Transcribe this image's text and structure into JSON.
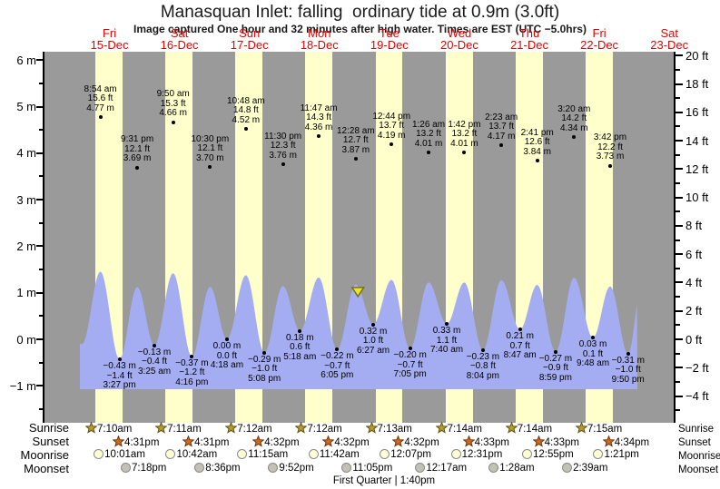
{
  "header": {
    "title": "Manasquan Inlet: falling  ordinary tide at 0.9m (3.0ft)",
    "subtitle": "Image captured One hour and 32 minutes after high water. Times are EST (UTC −5.0hrs)"
  },
  "days": [
    {
      "name": "Fri",
      "date": "15-Dec"
    },
    {
      "name": "Sat",
      "date": "16-Dec"
    },
    {
      "name": "Sun",
      "date": "17-Dec"
    },
    {
      "name": "Mon",
      "date": "18-Dec"
    },
    {
      "name": "Tue",
      "date": "19-Dec"
    },
    {
      "name": "Wed",
      "date": "20-Dec"
    },
    {
      "name": "Thu",
      "date": "21-Dec"
    },
    {
      "name": "Fri",
      "date": "22-Dec"
    },
    {
      "name": "Sat",
      "date": "23-Dec"
    }
  ],
  "axis": {
    "left_ticks": [
      {
        "v": 6,
        "label": "6 m"
      },
      {
        "v": 5,
        "label": "5 m"
      },
      {
        "v": 4,
        "label": "4 m"
      },
      {
        "v": 3,
        "label": "3 m"
      },
      {
        "v": 2,
        "label": "2 m"
      },
      {
        "v": 1,
        "label": "1 m"
      },
      {
        "v": 0,
        "label": "0 m"
      },
      {
        "v": -1,
        "label": "−1 m"
      }
    ],
    "right_ticks": [
      {
        "v": 20,
        "label": "20 ft"
      },
      {
        "v": 18,
        "label": "18 ft"
      },
      {
        "v": 16,
        "label": "16 ft"
      },
      {
        "v": 14,
        "label": "14 ft"
      },
      {
        "v": 12,
        "label": "12 ft"
      },
      {
        "v": 10,
        "label": "10 ft"
      },
      {
        "v": 8,
        "label": "8 ft"
      },
      {
        "v": 6,
        "label": "6 ft"
      },
      {
        "v": 4,
        "label": "4 ft"
      },
      {
        "v": 2,
        "label": "2 ft"
      },
      {
        "v": 0,
        "label": "0 ft"
      },
      {
        "v": -2,
        "label": "−2 ft"
      },
      {
        "v": -4,
        "label": "−4 ft"
      }
    ]
  },
  "chart_data": {
    "type": "area",
    "title": "Manasquan Inlet: falling  ordinary tide at 0.9m (3.0ft)",
    "x_axis": "days 15-Dec through 23-Dec",
    "y_axis_left": "height (m), range −1.8 to 6.2",
    "y_axis_right": "height (ft), range −5 to 20",
    "high_tides": [
      {
        "day": 0,
        "time": "8:54 am",
        "ft": "15.6 ft",
        "m": "4.77 m",
        "m_val": 4.77
      },
      {
        "day": 0,
        "time": "9:31 pm",
        "ft": "12.1 ft",
        "m": "3.69 m",
        "m_val": 3.69
      },
      {
        "day": 1,
        "time": "9:50 am",
        "ft": "15.3 ft",
        "m": "4.66 m",
        "m_val": 4.66
      },
      {
        "day": 1,
        "time": "10:30 pm",
        "ft": "12.1 ft",
        "m": "3.70 m",
        "m_val": 3.7
      },
      {
        "day": 2,
        "time": "10:48 am",
        "ft": "14.8 ft",
        "m": "4.52 m",
        "m_val": 4.52
      },
      {
        "day": 2,
        "time": "11:30 pm",
        "ft": "12.3 ft",
        "m": "3.76 m",
        "m_val": 3.76
      },
      {
        "day": 3,
        "time": "11:47 am",
        "ft": "14.3 ft",
        "m": "4.36 m",
        "m_val": 4.36
      },
      {
        "day": 4,
        "time": "12:28 am",
        "ft": "12.7 ft",
        "m": "3.87 m",
        "m_val": 3.87
      },
      {
        "day": 4,
        "time": "12:44 pm",
        "ft": "13.7 ft",
        "m": "4.19 m",
        "m_val": 4.19
      },
      {
        "day": 5,
        "time": "1:26 am",
        "ft": "13.2 ft",
        "m": "4.01 m",
        "m_val": 4.01
      },
      {
        "day": 5,
        "time": "1:42 pm",
        "ft": "13.2 ft",
        "m": "4.01 m",
        "m_val": 4.01
      },
      {
        "day": 6,
        "time": "2:23 am",
        "ft": "13.7 ft",
        "m": "4.17 m",
        "m_val": 4.17
      },
      {
        "day": 6,
        "time": "2:41 pm",
        "ft": "12.6 ft",
        "m": "3.84 m",
        "m_val": 3.84
      },
      {
        "day": 7,
        "time": "3:20 am",
        "ft": "14.2 ft",
        "m": "4.34 m",
        "m_val": 4.34
      },
      {
        "day": 7,
        "time": "3:42 pm",
        "ft": "12.2 ft",
        "m": "3.73 m",
        "m_val": 3.73
      }
    ],
    "low_tides": [
      {
        "day": 0,
        "time": "3:27 pm",
        "m": "−0.43 m",
        "ft": "−1.4 ft",
        "m_val": -0.43
      },
      {
        "day": 1,
        "time": "3:25 am",
        "m": "−0.13 m",
        "ft": "−0.4 ft",
        "m_val": -0.13
      },
      {
        "day": 1,
        "time": "4:16 pm",
        "m": "−0.37 m",
        "ft": "−1.2 ft",
        "m_val": -0.37
      },
      {
        "day": 2,
        "time": "4:18 am",
        "m": "0.00 m",
        "ft": "0.0 ft",
        "m_val": 0.0
      },
      {
        "day": 2,
        "time": "5:08 pm",
        "m": "−0.29 m",
        "ft": "−1.0 ft",
        "m_val": -0.29
      },
      {
        "day": 3,
        "time": "5:18 am",
        "m": "0.18 m",
        "ft": "0.6 ft",
        "m_val": 0.18
      },
      {
        "day": 3,
        "time": "6:05 pm",
        "m": "−0.22 m",
        "ft": "−0.7 ft",
        "m_val": -0.22
      },
      {
        "day": 4,
        "time": "6:27 am",
        "m": "0.32 m",
        "ft": "1.0 ft",
        "m_val": 0.32
      },
      {
        "day": 4,
        "time": "7:05 pm",
        "m": "−0.20 m",
        "ft": "−0.7 ft",
        "m_val": -0.2
      },
      {
        "day": 5,
        "time": "7:40 am",
        "m": "0.33 m",
        "ft": "1.1 ft",
        "m_val": 0.33
      },
      {
        "day": 5,
        "time": "8:04 pm",
        "m": "−0.23 m",
        "ft": "−0.8 ft",
        "m_val": -0.23
      },
      {
        "day": 6,
        "time": "8:47 am",
        "m": "0.21 m",
        "ft": "0.7 ft",
        "m_val": 0.21
      },
      {
        "day": 6,
        "time": "8:59 pm",
        "m": "−0.27 m",
        "ft": "−0.9 ft",
        "m_val": -0.27
      },
      {
        "day": 7,
        "time": "9:48 am",
        "m": "0.03 m",
        "ft": "0.1 ft",
        "m_val": 0.03
      },
      {
        "day": 7,
        "time": "9:50 pm",
        "m": "−0.31 m",
        "ft": "−1.0 ft",
        "m_val": -0.31
      }
    ],
    "current_marker": {
      "m_val": 0.9,
      "day": 4,
      "hour": 1.2
    },
    "colors": {
      "night": "#9a9a9a",
      "daylight": "#ffffcc",
      "tide_fill": "#a5adf2",
      "day_label": "#e60000",
      "marker": "#ece32f"
    }
  },
  "astro": {
    "left_labels": [
      "Sunrise",
      "Sunset",
      "Moonrise",
      "Moonset"
    ],
    "right_labels": [
      "Sunrise",
      "Sunset",
      "Moonrise",
      "Moonset"
    ],
    "sunrise": [
      {
        "day": 0,
        "time": "7:10am"
      },
      {
        "day": 1,
        "time": "7:11am"
      },
      {
        "day": 2,
        "time": "7:12am"
      },
      {
        "day": 3,
        "time": "7:12am"
      },
      {
        "day": 4,
        "time": "7:13am"
      },
      {
        "day": 5,
        "time": "7:14am"
      },
      {
        "day": 6,
        "time": "7:14am"
      },
      {
        "day": 7,
        "time": "7:15am"
      }
    ],
    "sunset": [
      {
        "day": 0,
        "time": "4:31pm"
      },
      {
        "day": 1,
        "time": "4:31pm"
      },
      {
        "day": 2,
        "time": "4:32pm"
      },
      {
        "day": 3,
        "time": "4:32pm"
      },
      {
        "day": 4,
        "time": "4:32pm"
      },
      {
        "day": 5,
        "time": "4:33pm"
      },
      {
        "day": 6,
        "time": "4:33pm"
      },
      {
        "day": 7,
        "time": "4:34pm"
      }
    ],
    "moonrise": [
      {
        "day": 0,
        "time": "10:01am"
      },
      {
        "day": 1,
        "time": "10:42am"
      },
      {
        "day": 2,
        "time": "11:15am"
      },
      {
        "day": 3,
        "time": "11:42am"
      },
      {
        "day": 4,
        "time": "12:07pm"
      },
      {
        "day": 5,
        "time": "12:31pm"
      },
      {
        "day": 6,
        "time": "12:55pm"
      },
      {
        "day": 7,
        "time": "1:21pm"
      }
    ],
    "moonset": [
      {
        "day": 0,
        "time": "7:18pm"
      },
      {
        "day": 1,
        "time": "8:36pm"
      },
      {
        "day": 2,
        "time": "9:52pm"
      },
      {
        "day": 3,
        "time": "11:05pm"
      },
      {
        "day": 5,
        "time": "12:17am"
      },
      {
        "day": 6,
        "time": "1:28am"
      },
      {
        "day": 7,
        "time": "2:39am"
      }
    ],
    "moon_phase": "First Quarter | 1:40pm"
  }
}
